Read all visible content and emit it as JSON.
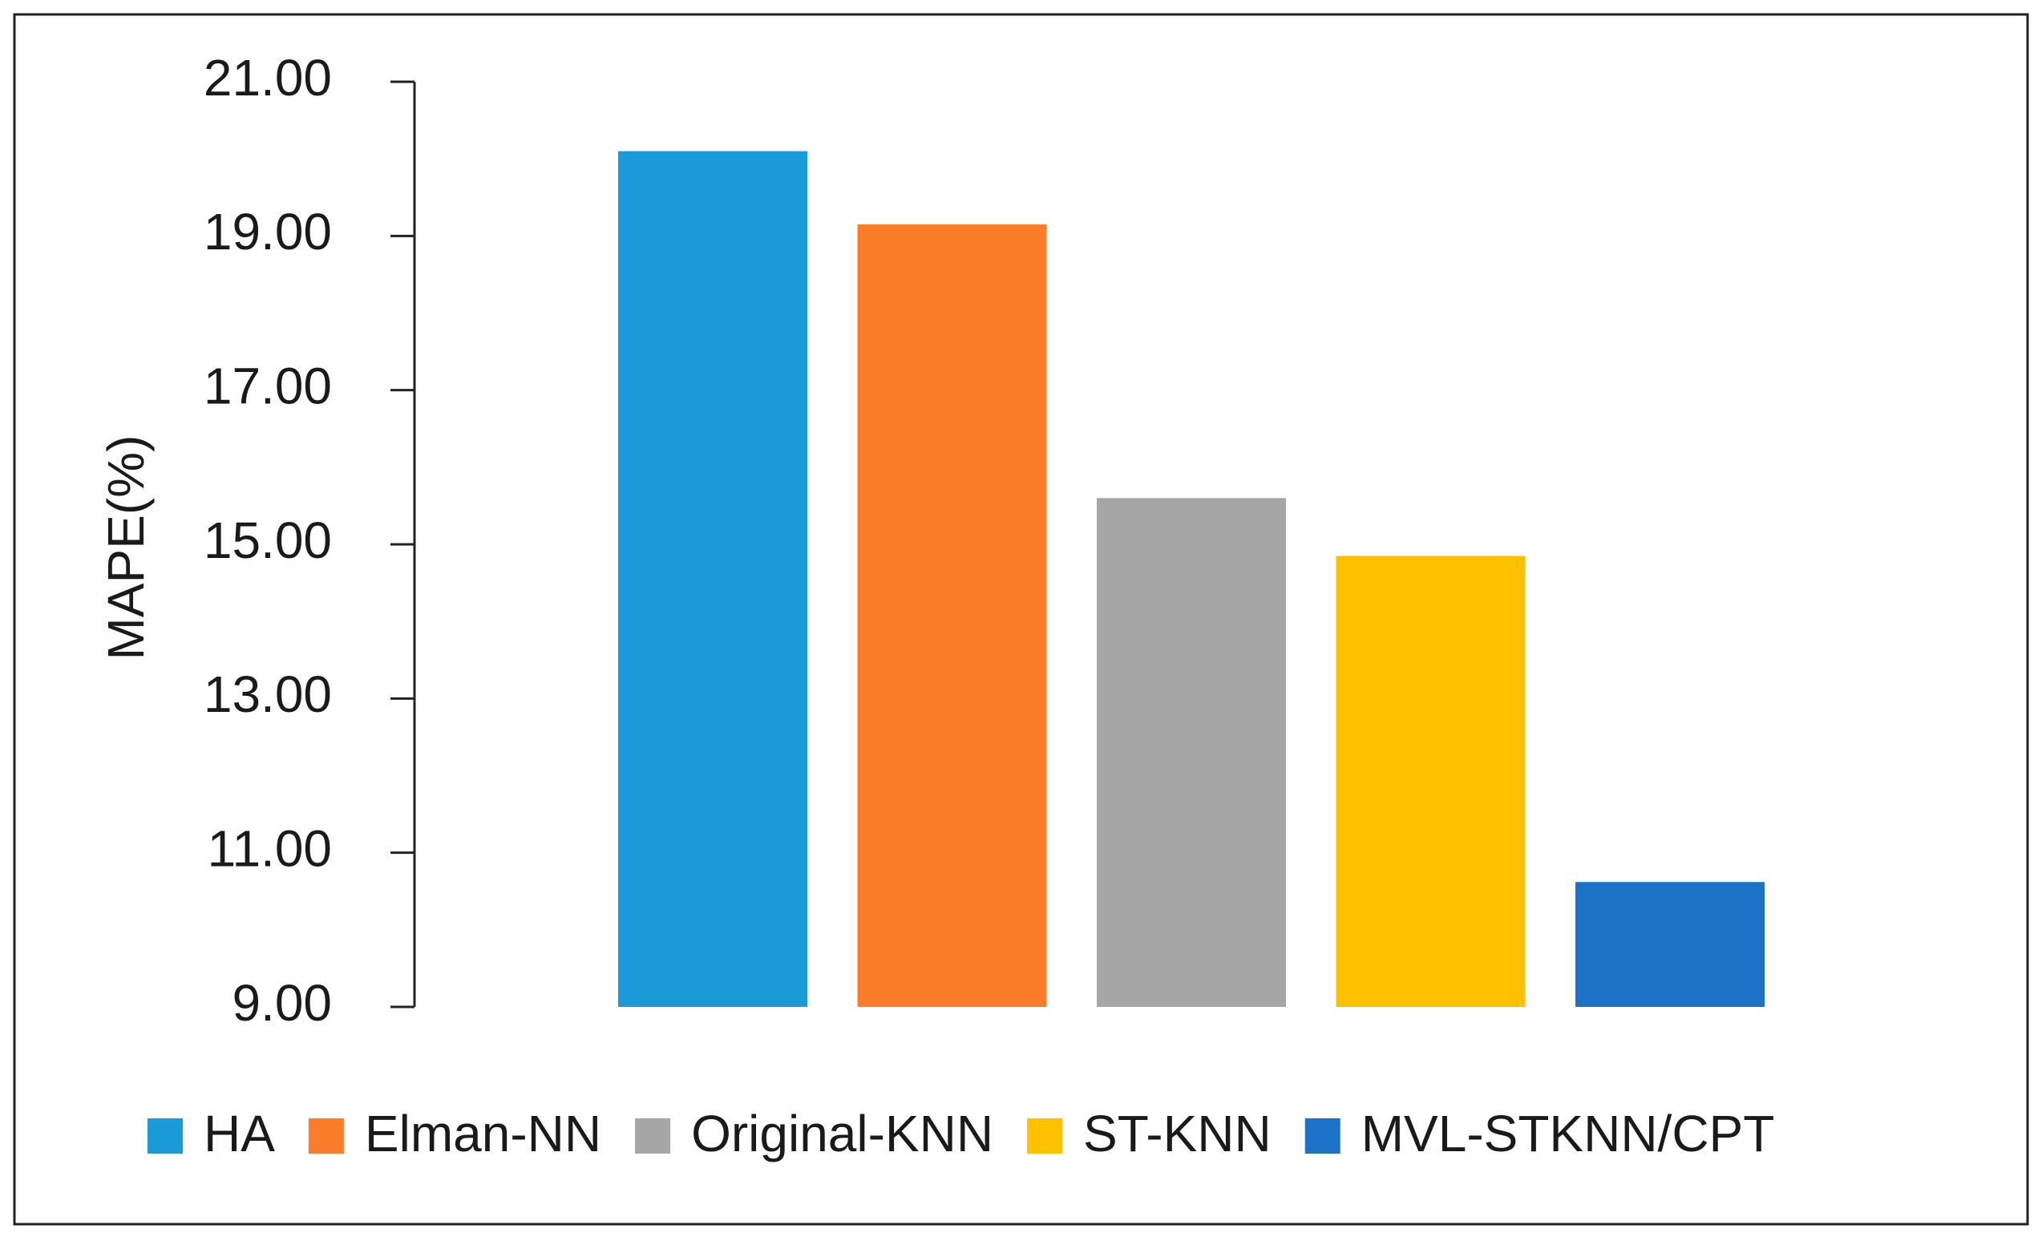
{
  "chart_data": {
    "type": "bar",
    "y_label": "MAPE(%)",
    "ylim": [
      9,
      21
    ],
    "yticks": [
      {
        "value": 9,
        "label": "9.00"
      },
      {
        "value": 11,
        "label": "11.00"
      },
      {
        "value": 13,
        "label": "13.00"
      },
      {
        "value": 15,
        "label": "15.00"
      },
      {
        "value": 17,
        "label": "17.00"
      },
      {
        "value": 19,
        "label": "19.00"
      },
      {
        "value": 21,
        "label": "21.00"
      }
    ],
    "series": [
      {
        "name": "HA",
        "color": "#1a9bd7",
        "values": [
          20.1
        ]
      },
      {
        "name": "Elman-NN",
        "color": "#fb7d2a",
        "values": [
          19.15
        ]
      },
      {
        "name": "Original-KNN",
        "color": "#a6a6a6",
        "values": [
          15.6
        ]
      },
      {
        "name": "ST-KNN",
        "color": "#ffc000",
        "values": [
          14.85
        ]
      },
      {
        "name": "MVL-STKNN/CPT",
        "color": "#1b72c6",
        "values": [
          10.62
        ]
      }
    ],
    "legend": "bottom"
  }
}
